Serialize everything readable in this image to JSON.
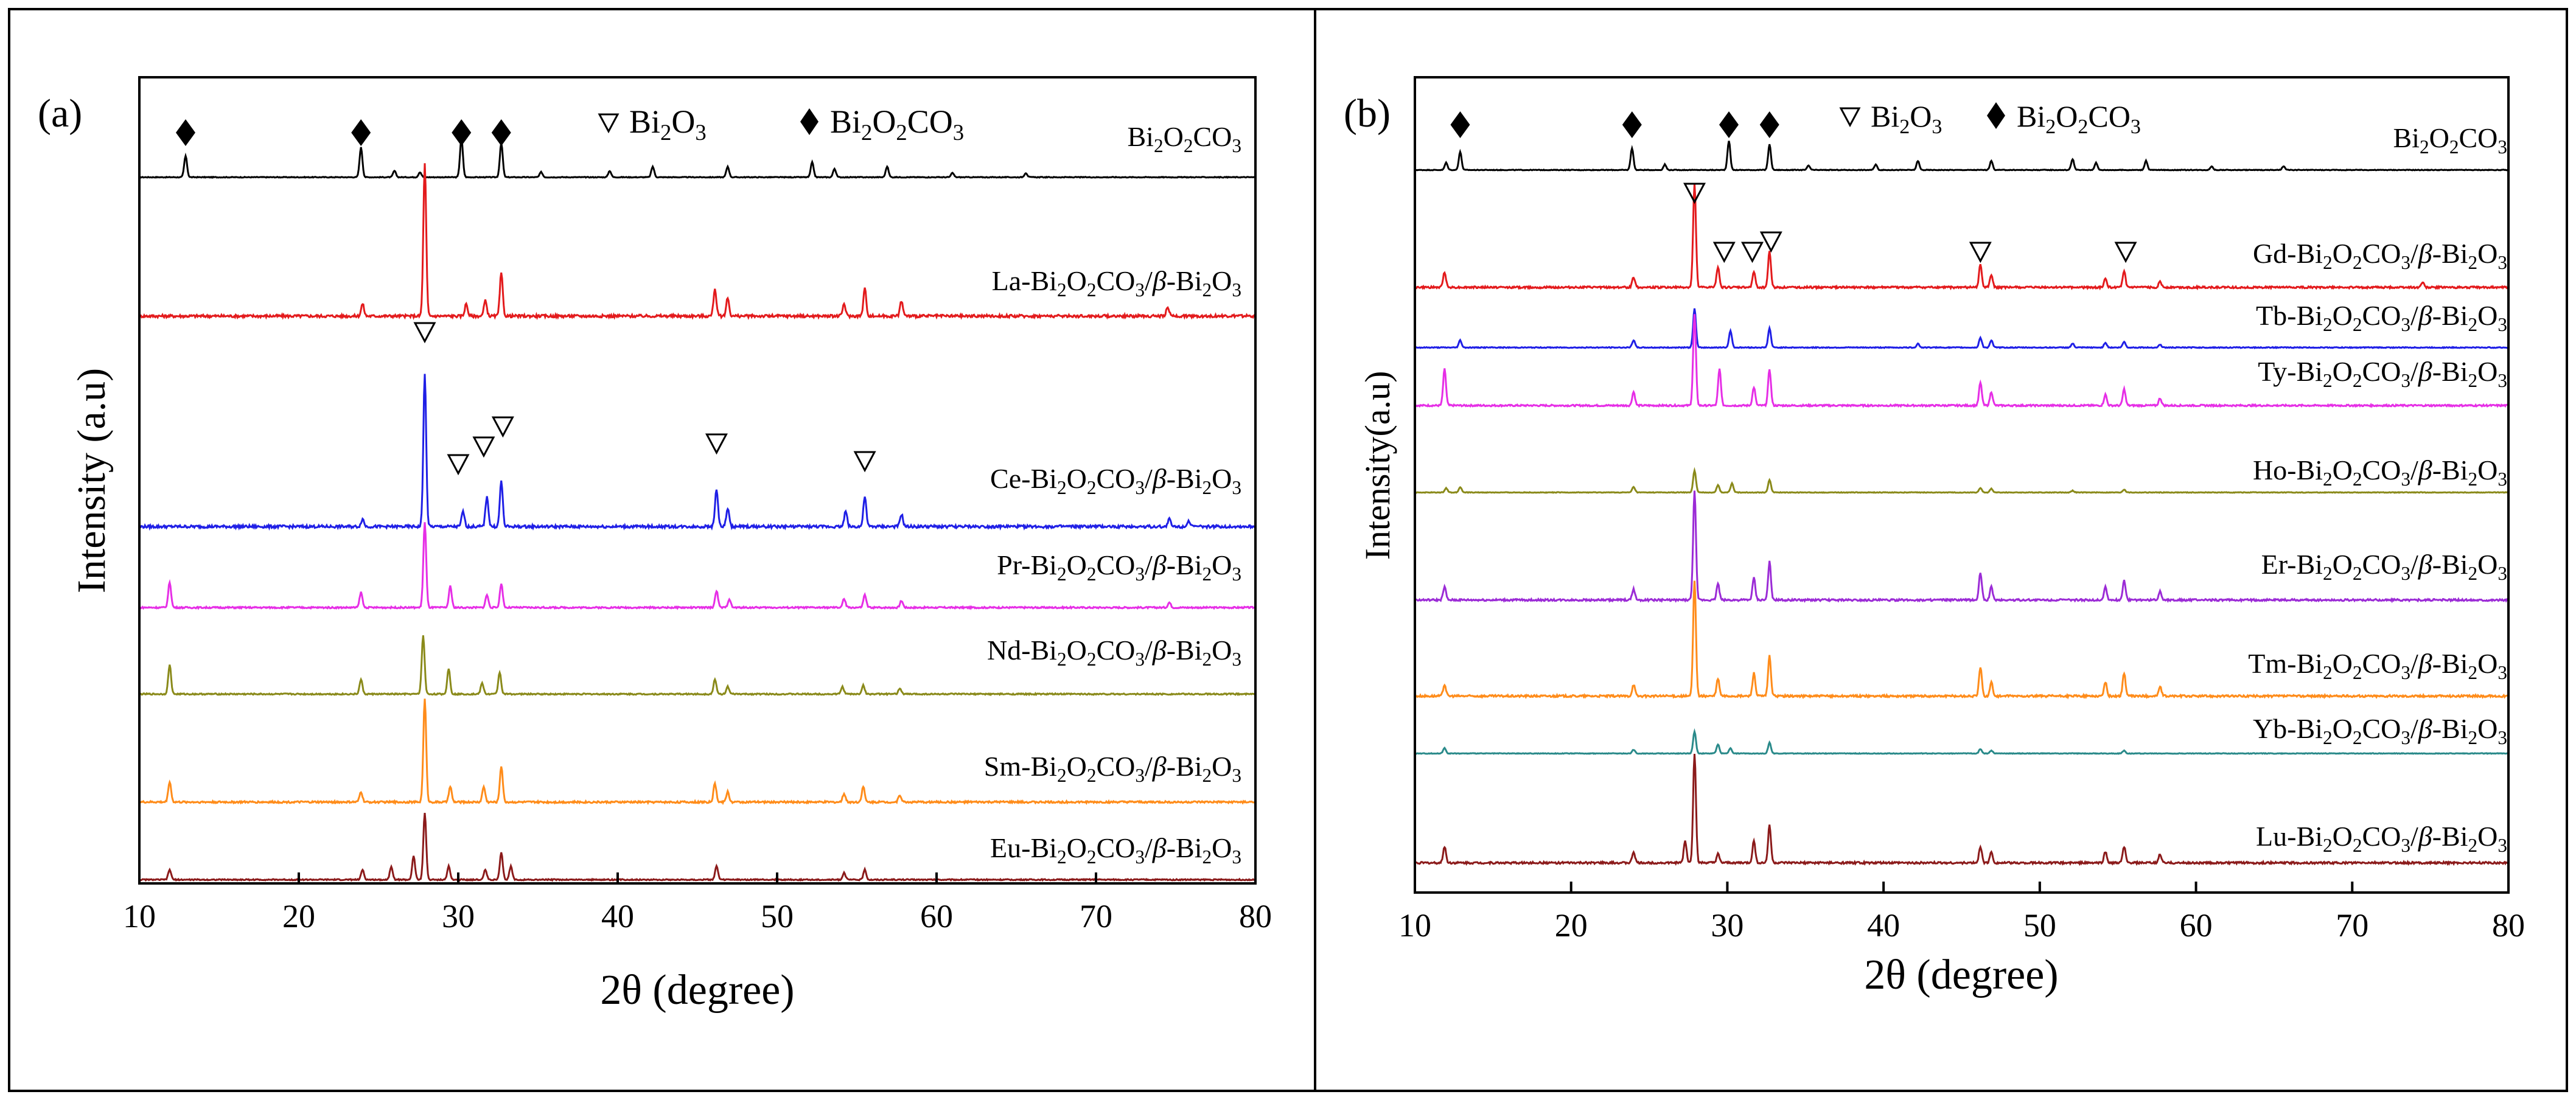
{
  "chart_data": [
    {
      "type": "line",
      "panel_label": "(a)",
      "xlabel": "2θ (degree)",
      "ylabel": "Intensity (a.u)",
      "xlim": [
        10,
        80
      ],
      "xticks": [
        10,
        20,
        30,
        40,
        50,
        60,
        70,
        80
      ],
      "y_ticks_shown": false,
      "legend": {
        "triangle_label": "Bi2O3",
        "diamond_label": "Bi2O2CO3"
      },
      "series": [
        {
          "name": "Bi2O2CO3",
          "color": "#000000",
          "peaks": [
            [
              12.9,
              0.5
            ],
            [
              23.9,
              0.7
            ],
            [
              26.0,
              0.15
            ],
            [
              27.6,
              0.12
            ],
            [
              30.2,
              0.9
            ],
            [
              32.7,
              0.8
            ],
            [
              35.2,
              0.12
            ],
            [
              39.5,
              0.15
            ],
            [
              42.2,
              0.25
            ],
            [
              46.9,
              0.25
            ],
            [
              52.2,
              0.35
            ],
            [
              53.6,
              0.2
            ],
            [
              56.9,
              0.25
            ],
            [
              61.0,
              0.1
            ],
            [
              65.6,
              0.1
            ]
          ]
        },
        {
          "name": "La-Bi2O2CO3/β-Bi2O3",
          "color": "#e31a1c",
          "peaks": [
            [
              24.0,
              0.08
            ],
            [
              27.9,
              1.0
            ],
            [
              30.5,
              0.08
            ],
            [
              31.7,
              0.1
            ],
            [
              32.7,
              0.28
            ],
            [
              46.1,
              0.18
            ],
            [
              46.9,
              0.12
            ],
            [
              54.2,
              0.08
            ],
            [
              55.5,
              0.18
            ],
            [
              57.8,
              0.1
            ],
            [
              74.5,
              0.06
            ]
          ]
        },
        {
          "name": "Ce-Bi2O2CO3/β-Bi2O3",
          "color": "#1f1fe6",
          "peaks": [
            [
              24.0,
              0.05
            ],
            [
              27.9,
              1.0
            ],
            [
              30.3,
              0.1
            ],
            [
              31.8,
              0.2
            ],
            [
              32.7,
              0.3
            ],
            [
              46.2,
              0.25
            ],
            [
              46.9,
              0.12
            ],
            [
              54.3,
              0.1
            ],
            [
              55.5,
              0.2
            ],
            [
              57.8,
              0.08
            ],
            [
              74.6,
              0.05
            ],
            [
              75.8,
              0.04
            ]
          ]
        },
        {
          "name": "Pr-Bi2O2CO3/β-Bi2O3",
          "color": "#e62ee6",
          "peaks": [
            [
              11.9,
              0.3
            ],
            [
              23.9,
              0.18
            ],
            [
              27.9,
              1.0
            ],
            [
              29.5,
              0.25
            ],
            [
              31.8,
              0.15
            ],
            [
              32.7,
              0.28
            ],
            [
              46.2,
              0.2
            ],
            [
              47.0,
              0.1
            ],
            [
              54.2,
              0.1
            ],
            [
              55.5,
              0.15
            ],
            [
              57.8,
              0.08
            ],
            [
              74.6,
              0.06
            ]
          ]
        },
        {
          "name": "Nd-Bi2O2CO3/β-Bi2O3",
          "color": "#8a8a1a",
          "peaks": [
            [
              11.9,
              0.4
            ],
            [
              23.9,
              0.2
            ],
            [
              27.8,
              0.8
            ],
            [
              29.4,
              0.35
            ],
            [
              31.5,
              0.15
            ],
            [
              32.6,
              0.3
            ],
            [
              46.1,
              0.2
            ],
            [
              46.9,
              0.1
            ],
            [
              54.1,
              0.1
            ],
            [
              55.4,
              0.12
            ],
            [
              57.7,
              0.08
            ]
          ]
        },
        {
          "name": "Sm-Bi2O2CO3/β-Bi2O3",
          "color": "#ff8c1a",
          "peaks": [
            [
              11.9,
              0.2
            ],
            [
              23.9,
              0.1
            ],
            [
              27.9,
              1.0
            ],
            [
              29.5,
              0.15
            ],
            [
              31.6,
              0.15
            ],
            [
              32.7,
              0.35
            ],
            [
              46.1,
              0.18
            ],
            [
              46.9,
              0.1
            ],
            [
              54.2,
              0.08
            ],
            [
              55.4,
              0.15
            ],
            [
              57.7,
              0.07
            ]
          ]
        },
        {
          "name": "Eu-Bi2O2CO3/β-Bi2O3",
          "color": "#8b1a1a",
          "peaks": [
            [
              11.9,
              0.15
            ],
            [
              24.0,
              0.15
            ],
            [
              25.8,
              0.2
            ],
            [
              27.2,
              0.35
            ],
            [
              27.9,
              1.0
            ],
            [
              29.4,
              0.2
            ],
            [
              31.7,
              0.15
            ],
            [
              32.7,
              0.4
            ],
            [
              33.3,
              0.2
            ],
            [
              46.2,
              0.2
            ],
            [
              54.2,
              0.1
            ],
            [
              55.5,
              0.15
            ]
          ]
        }
      ],
      "annotations": {
        "diamond_2theta": [
          12.9,
          23.9,
          30.2,
          32.7
        ],
        "triangle_2theta_ce": [
          27.9,
          30.0,
          31.6,
          32.8,
          46.2,
          55.5
        ]
      }
    },
    {
      "type": "line",
      "panel_label": "(b)",
      "xlabel": "2θ (degree)",
      "ylabel": "Intensity(a.u)",
      "xlim": [
        10,
        80
      ],
      "xticks": [
        10,
        20,
        30,
        40,
        50,
        60,
        70,
        80
      ],
      "y_ticks_shown": false,
      "legend": {
        "triangle_label": "Bi2O3",
        "diamond_label": "Bi2O2CO3"
      },
      "series": [
        {
          "name": "Bi2O2CO3",
          "color": "#000000",
          "peaks": [
            [
              12.0,
              0.2
            ],
            [
              12.9,
              0.5
            ],
            [
              23.9,
              0.6
            ],
            [
              26.0,
              0.15
            ],
            [
              30.1,
              0.8
            ],
            [
              32.7,
              0.7
            ],
            [
              35.2,
              0.12
            ],
            [
              39.5,
              0.15
            ],
            [
              42.2,
              0.25
            ],
            [
              46.9,
              0.25
            ],
            [
              52.1,
              0.3
            ],
            [
              53.6,
              0.2
            ],
            [
              56.8,
              0.25
            ],
            [
              61.0,
              0.1
            ],
            [
              65.6,
              0.1
            ]
          ]
        },
        {
          "name": "Gd-Bi2O2CO3/β-Bi2O3",
          "color": "#e31a1c",
          "peaks": [
            [
              11.9,
              0.15
            ],
            [
              24.0,
              0.1
            ],
            [
              27.9,
              1.0
            ],
            [
              29.4,
              0.2
            ],
            [
              31.7,
              0.15
            ],
            [
              32.7,
              0.35
            ],
            [
              46.2,
              0.22
            ],
            [
              46.9,
              0.12
            ],
            [
              54.2,
              0.08
            ],
            [
              55.4,
              0.15
            ],
            [
              57.7,
              0.06
            ],
            [
              74.5,
              0.05
            ]
          ]
        },
        {
          "name": "Tb-Bi2O2CO3/β-Bi2O3",
          "color": "#1f1fe6",
          "peaks": [
            [
              12.9,
              0.15
            ],
            [
              24.0,
              0.15
            ],
            [
              27.9,
              0.8
            ],
            [
              30.2,
              0.35
            ],
            [
              32.7,
              0.4
            ],
            [
              42.2,
              0.08
            ],
            [
              46.2,
              0.2
            ],
            [
              46.9,
              0.15
            ],
            [
              52.1,
              0.08
            ],
            [
              54.2,
              0.1
            ],
            [
              55.4,
              0.12
            ],
            [
              57.7,
              0.06
            ]
          ]
        },
        {
          "name": "Ty-Bi2O2CO3/β-Bi2O3",
          "color": "#e62ee6",
          "peaks": [
            [
              11.9,
              0.4
            ],
            [
              24.0,
              0.15
            ],
            [
              27.9,
              1.0
            ],
            [
              29.5,
              0.4
            ],
            [
              31.7,
              0.2
            ],
            [
              32.7,
              0.4
            ],
            [
              46.2,
              0.25
            ],
            [
              46.9,
              0.15
            ],
            [
              54.2,
              0.12
            ],
            [
              55.4,
              0.18
            ],
            [
              57.7,
              0.08
            ]
          ]
        },
        {
          "name": "Ho-Bi2O2CO3/β-Bi2O3",
          "color": "#8a8a1a",
          "peaks": [
            [
              12.0,
              0.12
            ],
            [
              12.9,
              0.15
            ],
            [
              24.0,
              0.15
            ],
            [
              27.9,
              0.6
            ],
            [
              29.4,
              0.2
            ],
            [
              30.3,
              0.25
            ],
            [
              32.7,
              0.35
            ],
            [
              46.2,
              0.12
            ],
            [
              46.9,
              0.1
            ],
            [
              52.1,
              0.05
            ],
            [
              55.4,
              0.08
            ]
          ]
        },
        {
          "name": "Er-Bi2O2CO3/β-Bi2O3",
          "color": "#9b2bd6",
          "peaks": [
            [
              11.9,
              0.12
            ],
            [
              24.0,
              0.1
            ],
            [
              27.9,
              1.0
            ],
            [
              29.4,
              0.15
            ],
            [
              31.7,
              0.2
            ],
            [
              32.7,
              0.35
            ],
            [
              46.2,
              0.25
            ],
            [
              46.9,
              0.12
            ],
            [
              54.2,
              0.12
            ],
            [
              55.4,
              0.18
            ],
            [
              57.7,
              0.08
            ]
          ]
        },
        {
          "name": "Tm-Bi2O2CO3/β-Bi2O3",
          "color": "#ff8c1a",
          "peaks": [
            [
              11.9,
              0.1
            ],
            [
              24.0,
              0.1
            ],
            [
              27.9,
              1.0
            ],
            [
              29.4,
              0.15
            ],
            [
              31.7,
              0.2
            ],
            [
              32.7,
              0.35
            ],
            [
              46.2,
              0.25
            ],
            [
              46.9,
              0.12
            ],
            [
              54.2,
              0.12
            ],
            [
              55.4,
              0.2
            ],
            [
              57.7,
              0.08
            ]
          ]
        },
        {
          "name": "Yb-Bi2O2CO3/β-Bi2O3",
          "color": "#2a8a8a",
          "peaks": [
            [
              11.9,
              0.15
            ],
            [
              24.0,
              0.1
            ],
            [
              27.9,
              0.6
            ],
            [
              29.4,
              0.25
            ],
            [
              30.2,
              0.15
            ],
            [
              32.7,
              0.3
            ],
            [
              46.2,
              0.12
            ],
            [
              46.9,
              0.08
            ],
            [
              55.4,
              0.08
            ]
          ]
        },
        {
          "name": "Lu-Bi2O2CO3/β-Bi2O3",
          "color": "#8b1a1a",
          "peaks": [
            [
              11.9,
              0.15
            ],
            [
              24.0,
              0.1
            ],
            [
              27.3,
              0.2
            ],
            [
              27.9,
              1.0
            ],
            [
              29.4,
              0.08
            ],
            [
              31.7,
              0.2
            ],
            [
              32.7,
              0.35
            ],
            [
              46.2,
              0.15
            ],
            [
              46.9,
              0.1
            ],
            [
              54.2,
              0.1
            ],
            [
              55.4,
              0.15
            ],
            [
              57.7,
              0.08
            ]
          ]
        }
      ],
      "annotations": {
        "diamond_2theta": [
          12.9,
          23.9,
          30.1,
          32.7
        ],
        "triangle_2theta_gd": [
          27.9,
          29.8,
          31.6,
          32.8,
          46.2,
          55.5
        ]
      }
    }
  ]
}
